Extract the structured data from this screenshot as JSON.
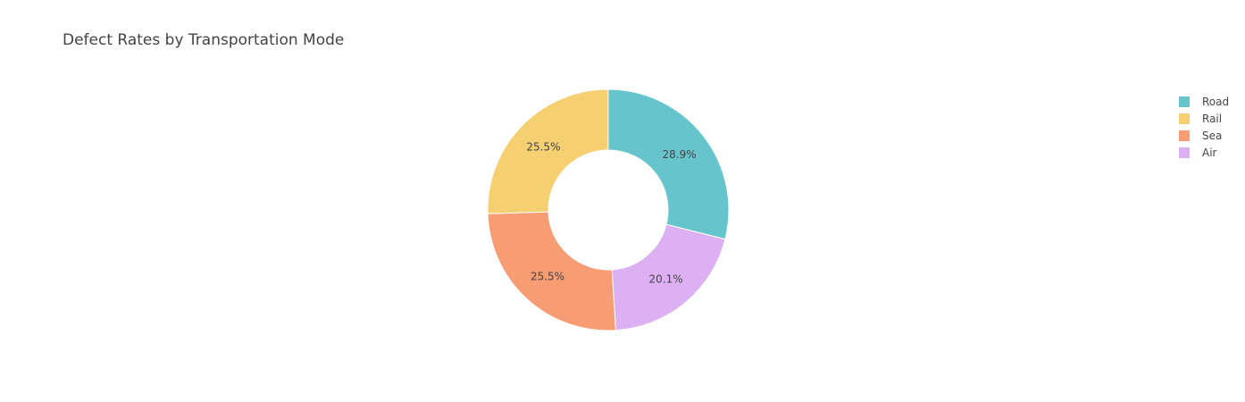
{
  "chart_data": {
    "type": "pie",
    "hole": true,
    "title": "Defect Rates by Transportation Mode",
    "slices": [
      {
        "label": "Road",
        "value": 28.9,
        "text": "28.9%",
        "color": "#66C5CC"
      },
      {
        "label": "Air",
        "value": 20.1,
        "text": "20.1%",
        "color": "#DCB0F2"
      },
      {
        "label": "Sea",
        "value": 25.5,
        "text": "25.5%",
        "color": "#F89C74"
      },
      {
        "label": "Rail",
        "value": 25.5,
        "text": "25.5%",
        "color": "#F6CF71"
      }
    ],
    "legend": {
      "placement": "top-right",
      "items": [
        {
          "label": "Road",
          "color": "#66C5CC"
        },
        {
          "label": "Rail",
          "color": "#F6CF71"
        },
        {
          "label": "Sea",
          "color": "#F89C74"
        },
        {
          "label": "Air",
          "color": "#DCB0F2"
        }
      ]
    }
  }
}
